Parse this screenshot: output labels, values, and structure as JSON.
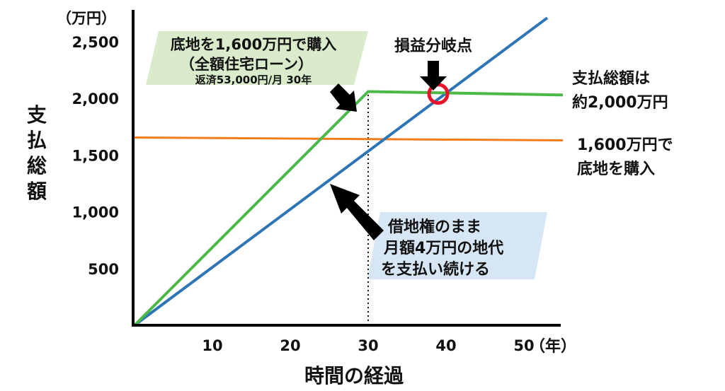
{
  "chart_data": {
    "type": "line",
    "ylabel": "支払総額",
    "y_unit": "（万円）",
    "xlabel": "時間の経過",
    "x_unit": "（年）",
    "x_ticks": [
      "10",
      "20",
      "30",
      "40",
      "50"
    ],
    "y_ticks": [
      "500",
      "1,000",
      "1,500",
      "2,000",
      "2,500"
    ],
    "xlim": [
      0,
      55
    ],
    "ylim": [
      0,
      2780
    ],
    "series": [
      {
        "key": "lease",
        "color": "#2E75B6",
        "x": [
          0,
          53
        ],
        "y": [
          0,
          2710
        ]
      },
      {
        "key": "loan",
        "color": "#4CB847",
        "x": [
          0,
          30,
          55
        ],
        "y": [
          0,
          2060,
          2030
        ]
      },
      {
        "key": "cash",
        "color": "#F07C1A",
        "x": [
          0,
          55
        ],
        "y": [
          1655,
          1630
        ]
      }
    ],
    "guide_line_x": 30,
    "breakeven": {
      "x": 39,
      "y": 2040
    },
    "annotations": {
      "loan_box": {
        "line1": "底地を1,600万円で購入",
        "line2": "（全額住宅ローン）",
        "line3": "返済53,000円/月 30年",
        "bg": "#D9EBCB"
      },
      "breakeven": "損益分岐点",
      "lease_box": {
        "line1": "借地権のまま",
        "line2": "月額4万円の地代",
        "line3": "を支払い続ける",
        "bg": "#D6E6F5"
      },
      "green_label": {
        "line1": "支払総額は",
        "line2": "約2,000万円",
        "color": "#4CB847"
      },
      "orange_label": {
        "line1": "1,600万円で",
        "line2": "底地を購入",
        "color": "#E36C0A"
      }
    }
  }
}
